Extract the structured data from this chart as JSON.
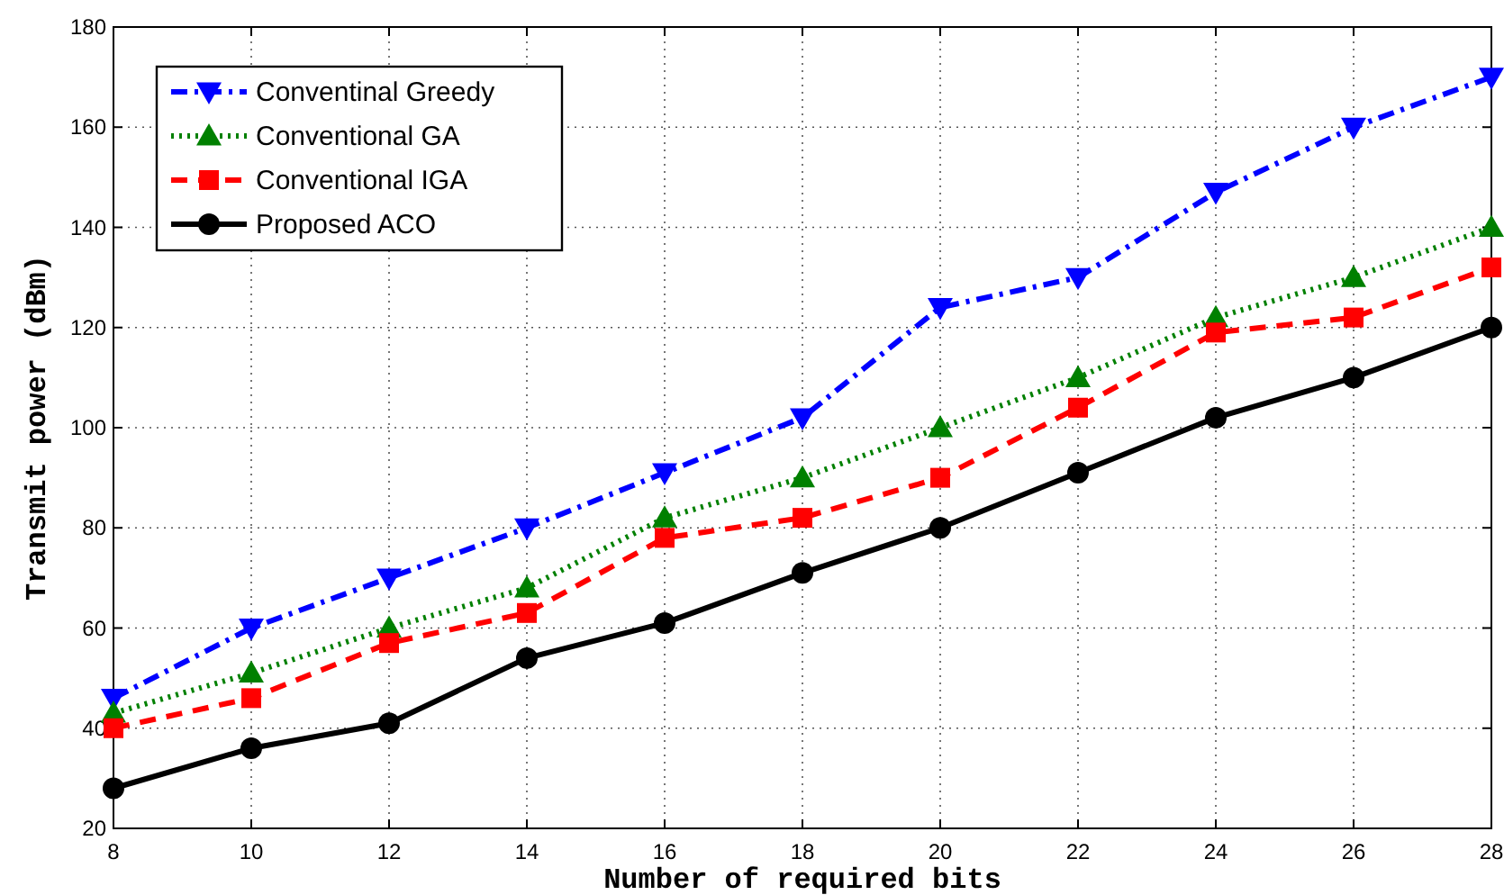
{
  "chart_data": {
    "type": "line",
    "xlabel": "Number of required bits",
    "ylabel": "Transmit power (dBm)",
    "x": [
      8,
      10,
      12,
      14,
      16,
      18,
      20,
      22,
      24,
      26,
      28
    ],
    "xlim": [
      8,
      28
    ],
    "xticks": [
      8,
      10,
      12,
      14,
      16,
      18,
      20,
      22,
      24,
      26,
      28
    ],
    "ylim": [
      20,
      180
    ],
    "yticks": [
      20,
      40,
      60,
      80,
      100,
      120,
      140,
      160,
      180
    ],
    "grid": true,
    "legend": "top left",
    "series": [
      {
        "name": "Conventinal Greedy",
        "color": "#0000ff",
        "marker": "triangle-down",
        "line_style": "dashdot",
        "values": [
          46,
          60,
          70,
          80,
          91,
          102,
          124,
          130,
          147,
          160,
          170
        ]
      },
      {
        "name": "Conventional GA",
        "color": "#008000",
        "marker": "triangle",
        "line_style": "dotted",
        "values": [
          43,
          51,
          60,
          68,
          82,
          90,
          100,
          110,
          122,
          130,
          140
        ]
      },
      {
        "name": "Conventional IGA",
        "color": "#ff0000",
        "marker": "square",
        "line_style": "dashed",
        "values": [
          40,
          46,
          57,
          63,
          78,
          82,
          90,
          104,
          119,
          122,
          132
        ]
      },
      {
        "name": "Proposed ACO",
        "color": "#000000",
        "marker": "circle",
        "line_style": "solid",
        "values": [
          28,
          36,
          41,
          54,
          61,
          71,
          80,
          91,
          102,
          110,
          120
        ]
      }
    ]
  }
}
